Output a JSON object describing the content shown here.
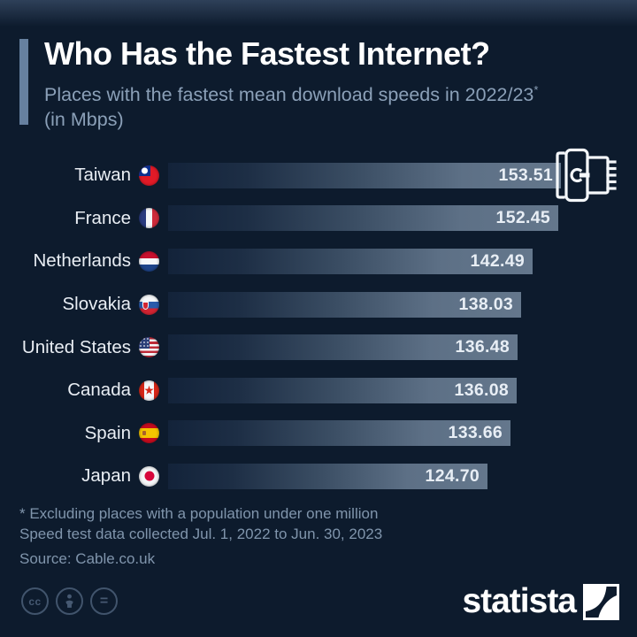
{
  "header": {
    "title": "Who Has the Fastest Internet?",
    "subtitle": "Places with the fastest mean download speeds in 2022/23",
    "subtitle_superscript": "*",
    "subtitle_line2": "(in Mbps)"
  },
  "chart_data": {
    "type": "bar",
    "orientation": "horizontal",
    "title": "Who Has the Fastest Internet?",
    "subtitle": "Places with the fastest mean download speeds in 2022/23* (in Mbps)",
    "unit": "Mbps",
    "categories": [
      "Taiwan",
      "France",
      "Netherlands",
      "Slovakia",
      "United States",
      "Canada",
      "Spain",
      "Japan"
    ],
    "values": [
      153.51,
      152.45,
      142.49,
      138.03,
      136.48,
      136.08,
      133.66,
      124.7
    ],
    "flags": [
      "taiwan",
      "france",
      "netherlands",
      "slovakia",
      "usa",
      "canada",
      "spain",
      "japan"
    ],
    "xlim": [
      0,
      153.51
    ],
    "value_label_decimals": 2,
    "grid": false,
    "legend": false,
    "bar_gradient": [
      "#13233a",
      "#64778c"
    ]
  },
  "footer": {
    "note1": "* Excluding places with a population under one million",
    "note2": "Speed test data collected Jul. 1, 2022 to Jun. 30, 2023",
    "source": "Source: Cable.co.uk"
  },
  "branding": {
    "logo_text": "statista",
    "cc_label": "cc",
    "nd_label": "="
  },
  "colors": {
    "background": "#0d1b2d",
    "accent_bar": "#66809f",
    "subtitle_text": "#8ba0b8",
    "footnote_text": "#8095ac",
    "value_text": "#e8eef5",
    "bar_end": "#64778c"
  }
}
